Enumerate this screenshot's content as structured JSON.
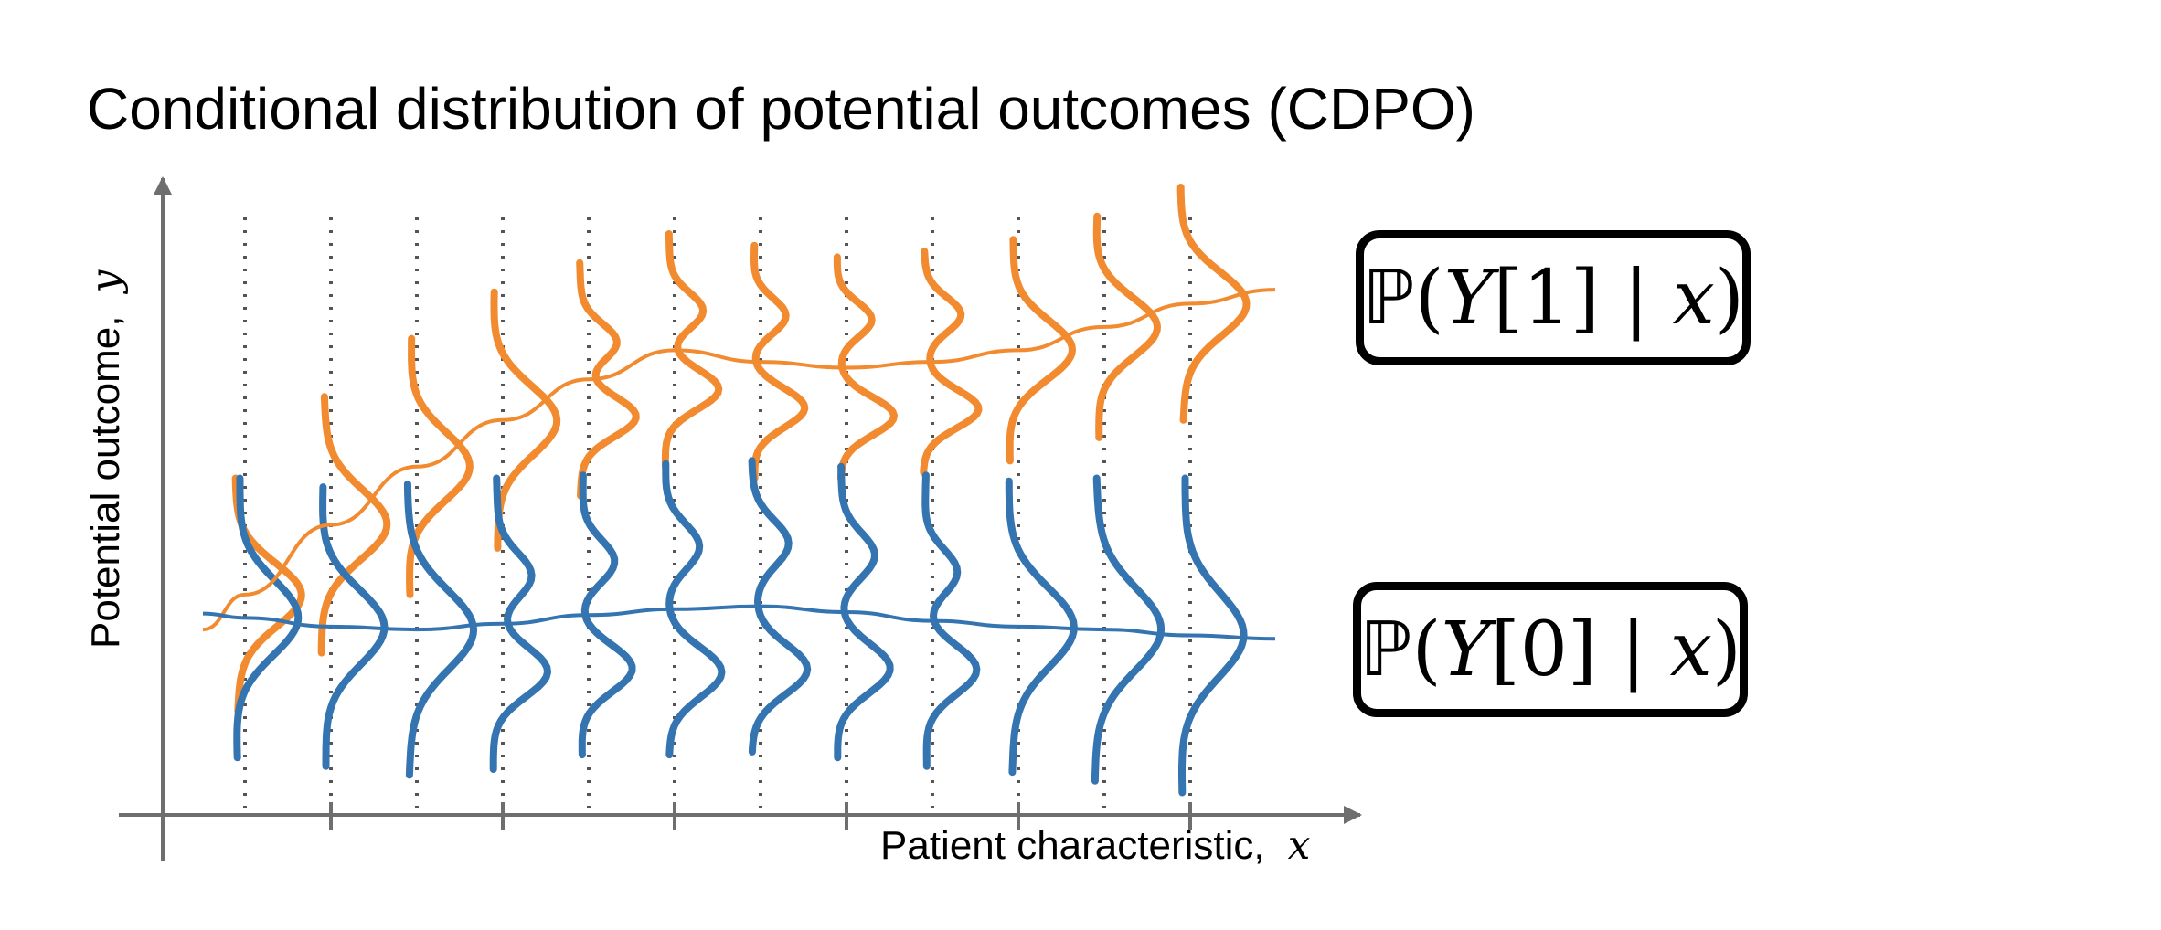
{
  "title": "Conditional distribution of potential outcomes (CDPO)",
  "axes": {
    "y_label": "Potential outcome,",
    "y_var": "y",
    "x_label": "Patient  characteristic,",
    "x_var": "x"
  },
  "legend": {
    "treated": {
      "bb": "ℙ",
      "open": "(",
      "var": "Y",
      "idx": "[1]",
      "bar": " | ",
      "cond": "x",
      "close": ")"
    },
    "control": {
      "bb": "ℙ",
      "open": "(",
      "var": "Y",
      "idx": "[0]",
      "bar": " | ",
      "cond": "x",
      "close": ")"
    }
  },
  "colors": {
    "treated": "#F28A30",
    "control": "#3474B0",
    "axis": "#6E6E6E",
    "guide": "#555555"
  },
  "chart_data": {
    "type": "line",
    "x_slices": 12,
    "ylim": [
      0,
      10
    ],
    "series": [
      {
        "name": "treated",
        "mean": [
          3.0,
          4.2,
          5.2,
          6.0,
          6.7,
          7.2,
          7.0,
          6.9,
          7.0,
          7.2,
          7.6,
          8.0
        ],
        "half_width": [
          2.0,
          2.2,
          2.2,
          2.2,
          2.0,
          2.0,
          2.0,
          1.9,
          1.9,
          1.9,
          1.9,
          2.0
        ],
        "shape": [
          "normal",
          "normal",
          "normal",
          "normal",
          "bimodal",
          "bimodal",
          "bimodal",
          "bimodal",
          "bimodal",
          "normal",
          "normal",
          "normal"
        ]
      },
      {
        "name": "control",
        "mean": [
          2.6,
          2.45,
          2.4,
          2.5,
          2.65,
          2.75,
          2.8,
          2.7,
          2.55,
          2.45,
          2.4,
          2.3
        ],
        "half_width": [
          2.4,
          2.4,
          2.5,
          2.5,
          2.4,
          2.5,
          2.5,
          2.5,
          2.5,
          2.5,
          2.6,
          2.7
        ],
        "shape": [
          "normal",
          "normal",
          "normal",
          "bimodal",
          "bimodal",
          "bimodal",
          "bimodal",
          "bimodal",
          "bimodal",
          "normal",
          "normal",
          "normal"
        ]
      }
    ]
  }
}
